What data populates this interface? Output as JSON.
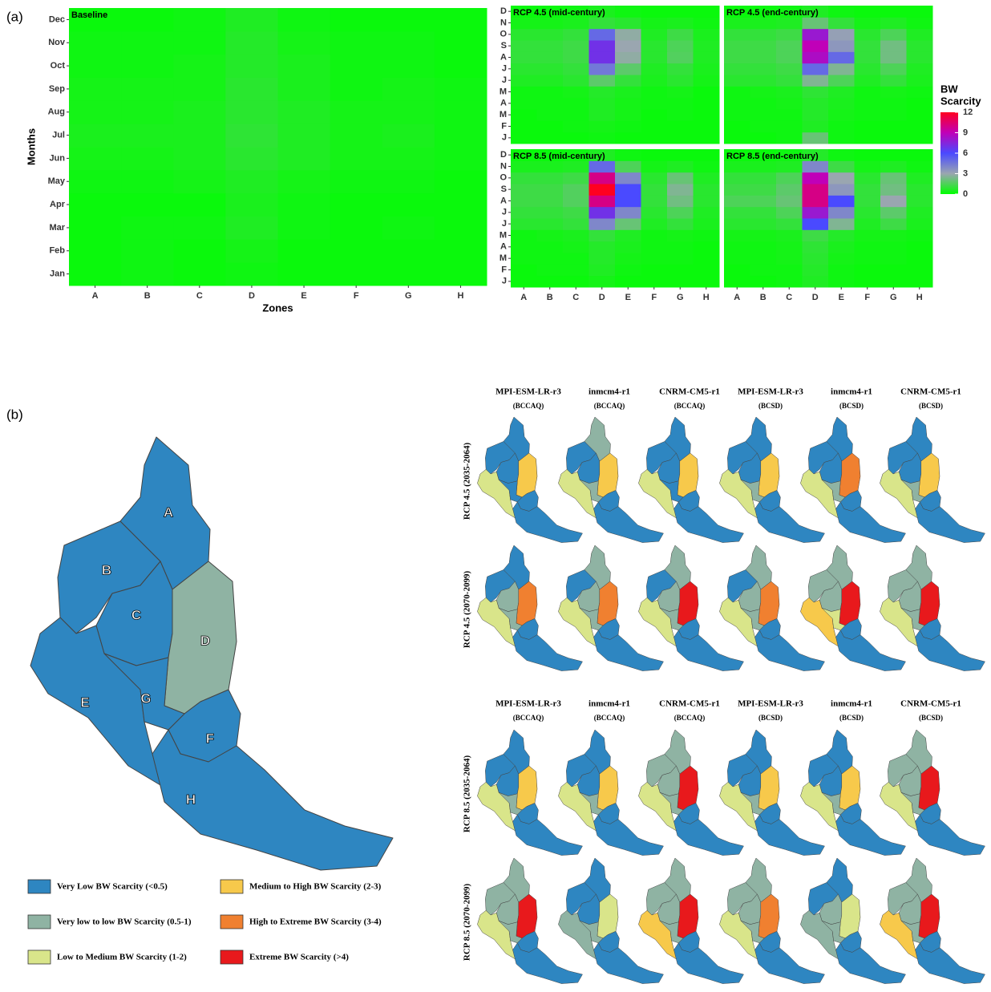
{
  "panel_labels": [
    "(a)",
    "(b)"
  ],
  "chart_data": [
    {
      "type": "heatmap",
      "title": "Baseline",
      "xlabel": "Zones",
      "ylabel": "Months",
      "categories": [
        "A",
        "B",
        "C",
        "D",
        "E",
        "F",
        "G",
        "H"
      ],
      "y_categories": [
        "Jan",
        "Feb",
        "Mar",
        "Apr",
        "May",
        "Jun",
        "Jul",
        "Aug",
        "Sep",
        "Oct",
        "Nov",
        "Dec"
      ],
      "values": [
        [
          0.2,
          0.3,
          0.2,
          0.3,
          0.2,
          0.2,
          0.2,
          0.2
        ],
        [
          0.2,
          0.3,
          0.2,
          0.4,
          0.2,
          0.2,
          0.2,
          0.2
        ],
        [
          0.2,
          0.3,
          0.3,
          0.6,
          0.3,
          0.2,
          0.3,
          0.2
        ],
        [
          0.2,
          0.2,
          0.2,
          0.5,
          0.3,
          0.2,
          0.2,
          0.2
        ],
        [
          0.3,
          0.3,
          0.4,
          0.6,
          0.4,
          0.3,
          0.3,
          0.2
        ],
        [
          0.4,
          0.4,
          0.5,
          0.8,
          0.6,
          0.4,
          0.4,
          0.3
        ],
        [
          0.5,
          0.5,
          0.5,
          0.9,
          0.6,
          0.4,
          0.5,
          0.3
        ],
        [
          0.4,
          0.4,
          0.5,
          0.8,
          0.6,
          0.4,
          0.4,
          0.3
        ],
        [
          0.4,
          0.4,
          0.4,
          0.8,
          0.5,
          0.3,
          0.4,
          0.3
        ],
        [
          0.3,
          0.3,
          0.4,
          0.7,
          0.5,
          0.3,
          0.3,
          0.2
        ],
        [
          0.3,
          0.3,
          0.3,
          0.7,
          0.4,
          0.3,
          0.3,
          0.2
        ],
        [
          0.2,
          0.2,
          0.3,
          0.6,
          0.3,
          0.2,
          0.2,
          0.2
        ]
      ]
    },
    {
      "type": "heatmap",
      "title": "RCP 4.5 (mid-century)",
      "categories": [
        "A",
        "B",
        "C",
        "D",
        "E",
        "F",
        "G",
        "H"
      ],
      "y_categories": [
        "J",
        "F",
        "M",
        "A",
        "M",
        "J",
        "J",
        "A",
        "S",
        "O",
        "N",
        "D"
      ],
      "values": [
        [
          0.2,
          0.2,
          0.2,
          0.3,
          0.2,
          0.2,
          0.2,
          0.2
        ],
        [
          0.2,
          0.2,
          0.3,
          0.4,
          0.3,
          0.2,
          0.2,
          0.2
        ],
        [
          0.2,
          0.3,
          0.3,
          0.6,
          0.4,
          0.2,
          0.3,
          0.2
        ],
        [
          0.3,
          0.3,
          0.3,
          0.6,
          0.4,
          0.3,
          0.3,
          0.2
        ],
        [
          0.3,
          0.3,
          0.4,
          0.7,
          0.5,
          0.3,
          0.4,
          0.2
        ],
        [
          0.6,
          0.6,
          0.8,
          1.8,
          1.0,
          0.5,
          0.8,
          0.4
        ],
        [
          0.8,
          0.8,
          1.0,
          4.5,
          1.8,
          0.6,
          1.0,
          0.5
        ],
        [
          1.0,
          1.0,
          1.2,
          7.0,
          2.8,
          0.8,
          1.6,
          0.6
        ],
        [
          1.0,
          1.0,
          1.2,
          7.0,
          3.0,
          0.8,
          1.5,
          0.6
        ],
        [
          0.8,
          0.8,
          1.0,
          5.0,
          2.8,
          0.6,
          1.2,
          0.5
        ],
        [
          0.4,
          0.4,
          0.5,
          1.0,
          0.8,
          0.4,
          0.5,
          0.3
        ],
        [
          0.2,
          0.2,
          0.3,
          0.5,
          0.3,
          0.2,
          0.2,
          0.2
        ]
      ]
    },
    {
      "type": "heatmap",
      "title": "RCP 4.5 (end-century)",
      "categories": [
        "A",
        "B",
        "C",
        "D",
        "E",
        "F",
        "G",
        "H"
      ],
      "y_categories": [
        "J",
        "F",
        "M",
        "A",
        "M",
        "J",
        "J",
        "A",
        "S",
        "O",
        "N",
        "D"
      ],
      "values": [
        [
          0.2,
          0.2,
          0.3,
          2.0,
          0.3,
          0.2,
          0.2,
          0.2
        ],
        [
          0.2,
          0.3,
          0.3,
          0.6,
          0.3,
          0.2,
          0.2,
          0.2
        ],
        [
          0.3,
          0.3,
          0.3,
          0.7,
          0.4,
          0.3,
          0.3,
          0.2
        ],
        [
          0.3,
          0.3,
          0.4,
          0.7,
          0.5,
          0.3,
          0.3,
          0.2
        ],
        [
          0.3,
          0.4,
          0.5,
          0.9,
          0.6,
          0.3,
          0.4,
          0.3
        ],
        [
          0.8,
          0.8,
          1.0,
          2.5,
          1.5,
          0.6,
          1.0,
          0.5
        ],
        [
          1.0,
          1.0,
          1.2,
          5.0,
          2.5,
          0.8,
          1.5,
          0.6
        ],
        [
          1.2,
          1.2,
          1.5,
          8.5,
          5.0,
          1.0,
          2.2,
          0.8
        ],
        [
          1.2,
          1.2,
          1.5,
          9.0,
          3.5,
          1.0,
          2.2,
          0.8
        ],
        [
          1.0,
          1.0,
          1.2,
          8.0,
          3.2,
          0.8,
          1.5,
          0.6
        ],
        [
          0.5,
          0.5,
          0.6,
          2.0,
          1.0,
          0.4,
          0.6,
          0.3
        ],
        [
          0.2,
          0.2,
          0.3,
          0.6,
          0.3,
          0.2,
          0.2,
          0.2
        ]
      ]
    },
    {
      "type": "heatmap",
      "title": "RCP 8.5 (mid-century)",
      "categories": [
        "A",
        "B",
        "C",
        "D",
        "E",
        "F",
        "G",
        "H"
      ],
      "y_categories": [
        "J",
        "F",
        "M",
        "A",
        "M",
        "J",
        "J",
        "A",
        "S",
        "O",
        "N",
        "D"
      ],
      "values": [
        [
          0.2,
          0.2,
          0.2,
          0.4,
          0.2,
          0.2,
          0.2,
          0.2
        ],
        [
          0.2,
          0.3,
          0.3,
          0.6,
          0.3,
          0.2,
          0.2,
          0.2
        ],
        [
          0.3,
          0.3,
          0.3,
          0.7,
          0.4,
          0.3,
          0.3,
          0.2
        ],
        [
          0.3,
          0.3,
          0.4,
          0.7,
          0.5,
          0.3,
          0.3,
          0.2
        ],
        [
          0.3,
          0.4,
          0.5,
          1.0,
          0.6,
          0.3,
          0.4,
          0.3
        ],
        [
          0.8,
          0.8,
          1.0,
          4.0,
          2.0,
          0.6,
          1.0,
          0.5
        ],
        [
          1.0,
          1.0,
          1.2,
          7.0,
          4.0,
          0.8,
          1.5,
          0.6
        ],
        [
          1.2,
          1.2,
          1.6,
          10.0,
          6.0,
          1.0,
          2.2,
          0.8
        ],
        [
          1.2,
          1.2,
          1.6,
          12.0,
          6.0,
          1.0,
          2.5,
          0.8
        ],
        [
          1.0,
          1.0,
          1.2,
          10.0,
          4.0,
          0.8,
          2.0,
          0.6
        ],
        [
          0.5,
          0.5,
          0.6,
          5.0,
          1.5,
          0.4,
          0.6,
          0.3
        ],
        [
          0.2,
          0.2,
          0.3,
          0.6,
          0.3,
          0.2,
          0.2,
          0.2
        ]
      ]
    },
    {
      "type": "heatmap",
      "title": "RCP 8.5 (end-century)",
      "categories": [
        "A",
        "B",
        "C",
        "D",
        "E",
        "F",
        "G",
        "H"
      ],
      "y_categories": [
        "J",
        "F",
        "M",
        "A",
        "M",
        "J",
        "J",
        "A",
        "S",
        "O",
        "N",
        "D"
      ],
      "values": [
        [
          0.2,
          0.2,
          0.3,
          0.6,
          0.3,
          0.2,
          0.2,
          0.2
        ],
        [
          0.2,
          0.3,
          0.3,
          0.7,
          0.3,
          0.2,
          0.2,
          0.2
        ],
        [
          0.3,
          0.3,
          0.4,
          0.8,
          0.4,
          0.3,
          0.3,
          0.2
        ],
        [
          0.3,
          0.3,
          0.4,
          0.9,
          0.5,
          0.3,
          0.3,
          0.2
        ],
        [
          0.4,
          0.4,
          0.5,
          1.2,
          0.7,
          0.4,
          0.4,
          0.3
        ],
        [
          0.8,
          0.8,
          1.0,
          6.0,
          2.5,
          0.6,
          1.2,
          0.5
        ],
        [
          1.0,
          1.0,
          1.5,
          8.0,
          4.0,
          0.8,
          1.8,
          0.6
        ],
        [
          1.5,
          1.5,
          2.0,
          10.0,
          6.0,
          1.0,
          3.0,
          0.8
        ],
        [
          1.2,
          1.2,
          1.8,
          10.0,
          3.5,
          1.0,
          2.2,
          0.8
        ],
        [
          1.0,
          1.0,
          1.5,
          9.0,
          3.0,
          0.8,
          2.0,
          0.6
        ],
        [
          0.5,
          0.5,
          0.6,
          4.0,
          1.2,
          0.4,
          0.6,
          0.3
        ],
        [
          0.2,
          0.2,
          0.3,
          0.7,
          0.3,
          0.2,
          0.2,
          0.2
        ]
      ]
    }
  ],
  "colorbar": {
    "title": [
      "BW",
      "Scarcity"
    ],
    "lim": [
      0,
      12
    ],
    "ticks": [
      0,
      3,
      6,
      9,
      12
    ],
    "colors": [
      "#00ff00",
      "#9aa6b0",
      "#4a4aff",
      "#c000b8",
      "#ff0020"
    ]
  },
  "maps": {
    "zones": [
      "A",
      "B",
      "C",
      "D",
      "E",
      "F",
      "G",
      "H"
    ],
    "baseline": [
      0,
      0,
      0,
      1,
      0,
      0,
      0,
      0
    ],
    "legend": [
      {
        "label": "Very Low BW Scarcity (<0.5)",
        "color": "#2e86c1"
      },
      {
        "label": "Very low to low BW Scarcity (0.5-1)",
        "color": "#8fb3a3"
      },
      {
        "label": "Low to Medium BW Scarcity (1-2)",
        "color": "#d9e58a"
      },
      {
        "label": "Medium to High BW Scarcity (2-3)",
        "color": "#f7c94b"
      },
      {
        "label": "High to Extreme BW Scarcity (3-4)",
        "color": "#f08030"
      },
      {
        "label": "Extreme BW Scarcity (>4)",
        "color": "#e8191c"
      }
    ],
    "groups": [
      {
        "models": [
          {
            "name": "MPI-ESM-LR-r3",
            "method": "(BCCAQ)"
          },
          {
            "name": "inmcm4-r1",
            "method": "(BCCAQ)"
          },
          {
            "name": "CNRM-CM5-r1",
            "method": "(BCCAQ)"
          },
          {
            "name": "MPI-ESM-LR-r3",
            "method": "(BCSD)"
          },
          {
            "name": "inmcm4-r1",
            "method": "(BCSD)"
          },
          {
            "name": "CNRM-CM5-r1",
            "method": "(BCSD)"
          }
        ],
        "rows": [
          {
            "label": "RCP 4.5 (2035-2064)",
            "classes": [
              [
                0,
                0,
                0,
                3,
                2,
                0,
                0,
                0
              ],
              [
                1,
                0,
                0,
                3,
                2,
                0,
                1,
                0
              ],
              [
                0,
                0,
                0,
                3,
                2,
                0,
                0,
                0
              ],
              [
                0,
                0,
                0,
                3,
                2,
                0,
                1,
                0
              ],
              [
                0,
                0,
                0,
                4,
                2,
                0,
                1,
                0
              ],
              [
                0,
                0,
                0,
                3,
                2,
                0,
                1,
                0
              ]
            ]
          },
          {
            "label": "RCP 4.5 (2070-2099)",
            "classes": [
              [
                0,
                0,
                1,
                4,
                2,
                0,
                1,
                0
              ],
              [
                1,
                0,
                1,
                4,
                2,
                0,
                1,
                0
              ],
              [
                1,
                0,
                1,
                5,
                2,
                0,
                1,
                0
              ],
              [
                1,
                0,
                1,
                4,
                2,
                0,
                1,
                0
              ],
              [
                1,
                1,
                1,
                5,
                3,
                0,
                2,
                0
              ],
              [
                1,
                1,
                1,
                5,
                2,
                0,
                1,
                0
              ]
            ]
          }
        ]
      },
      {
        "models": [
          {
            "name": "MPI-ESM-LR-r3",
            "method": "(BCCAQ)"
          },
          {
            "name": "inmcm4-r1",
            "method": "(BCCAQ)"
          },
          {
            "name": "CNRM-CM5-r1",
            "method": "(BCCAQ)"
          },
          {
            "name": "MPI-ESM-LR-r3",
            "method": "(BCSD)"
          },
          {
            "name": "inmcm4-r1",
            "method": "(BCSD)"
          },
          {
            "name": "CNRM-CM5-r1",
            "method": "(BCSD)"
          }
        ],
        "rows": [
          {
            "label": "RCP 8.5 (2035-2064)",
            "classes": [
              [
                0,
                0,
                0,
                3,
                2,
                0,
                1,
                0
              ],
              [
                0,
                0,
                0,
                3,
                2,
                0,
                1,
                0
              ],
              [
                1,
                1,
                1,
                5,
                2,
                0,
                1,
                0
              ],
              [
                0,
                0,
                0,
                3,
                2,
                0,
                1,
                0
              ],
              [
                0,
                0,
                0,
                3,
                2,
                0,
                1,
                0
              ],
              [
                1,
                1,
                1,
                5,
                2,
                0,
                1,
                0
              ]
            ]
          },
          {
            "label": "RCP 8.5 (2070-2099)",
            "classes": [
              [
                1,
                1,
                1,
                5,
                2,
                0,
                1,
                0
              ],
              [
                0,
                0,
                0,
                2,
                1,
                0,
                1,
                0
              ],
              [
                1,
                1,
                1,
                5,
                3,
                0,
                1,
                0
              ],
              [
                1,
                1,
                1,
                4,
                2,
                0,
                1,
                0
              ],
              [
                0,
                0,
                1,
                2,
                1,
                0,
                1,
                0
              ],
              [
                1,
                1,
                1,
                5,
                3,
                0,
                1,
                0
              ]
            ]
          }
        ]
      }
    ]
  }
}
